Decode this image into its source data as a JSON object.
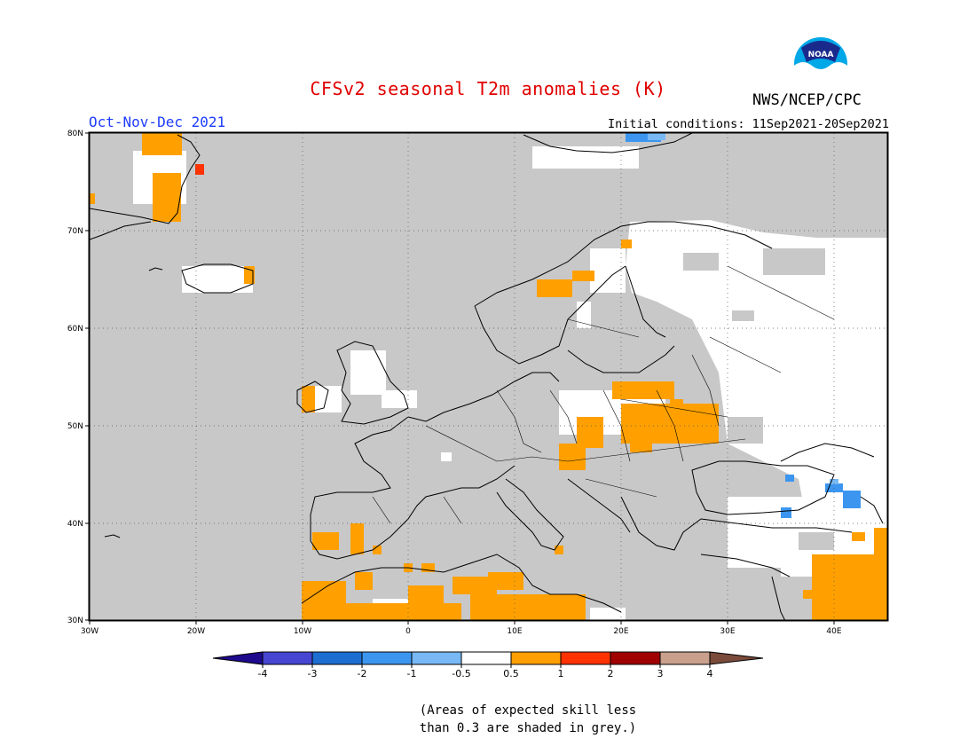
{
  "title": "CFSv2 seasonal T2m anomalies (K)",
  "organization": "NWS/NCEP/CPC",
  "logo_text": "NOAA",
  "period": "Oct-Nov-Dec 2021",
  "initial_conditions": "Initial conditions: 11Sep2021-20Sep2021",
  "map": {
    "region": "Europe",
    "lon_range": [
      -30,
      45
    ],
    "lat_range": [
      30,
      80
    ],
    "lat_labels": [
      "80N",
      "70N",
      "60N",
      "50N",
      "40N",
      "30N"
    ],
    "lon_labels": [
      "30W",
      "20W",
      "10W",
      "0",
      "10E",
      "20E",
      "30E",
      "40E"
    ],
    "background_color": "#c8c8c8",
    "dominant_category": "skill < 0.3 (grey)",
    "anomaly_regions": [
      {
        "area": "Greenland east coast",
        "category": "0.5 to 1"
      },
      {
        "area": "Poland / Ukraine",
        "category": "0.5 to 1"
      },
      {
        "area": "Slovakia / Hungary",
        "category": "0.5 to 1"
      },
      {
        "area": "North Africa (Morocco/Algeria/Tunisia)",
        "category": "0.5 to 1"
      },
      {
        "area": "Iberia south",
        "category": "0.5 to 1"
      },
      {
        "area": "Middle East",
        "category": "0.5 to 1"
      },
      {
        "area": "Caucasus",
        "category": "-1 to -0.5"
      },
      {
        "area": "Finland / NW Russia",
        "category": "-0.5 to 0.5"
      },
      {
        "area": "Central Russia",
        "category": "-0.5 to 0.5"
      }
    ]
  },
  "colorbar": {
    "colors": [
      "#1e0a8c",
      "#4646d2",
      "#1e6ed2",
      "#3c96f0",
      "#78b9f5",
      "#ffffff",
      "#ffa000",
      "#ff3200",
      "#a00000",
      "#c8a08c",
      "#7a4a3a"
    ],
    "labels": [
      "-4",
      "-3",
      "-2",
      "-1",
      "-0.5",
      "0.5",
      "1",
      "2",
      "3",
      "4"
    ]
  },
  "note_lines": [
    "(Areas of expected skill less",
    "than 0.3 are shaded in grey.)"
  ]
}
